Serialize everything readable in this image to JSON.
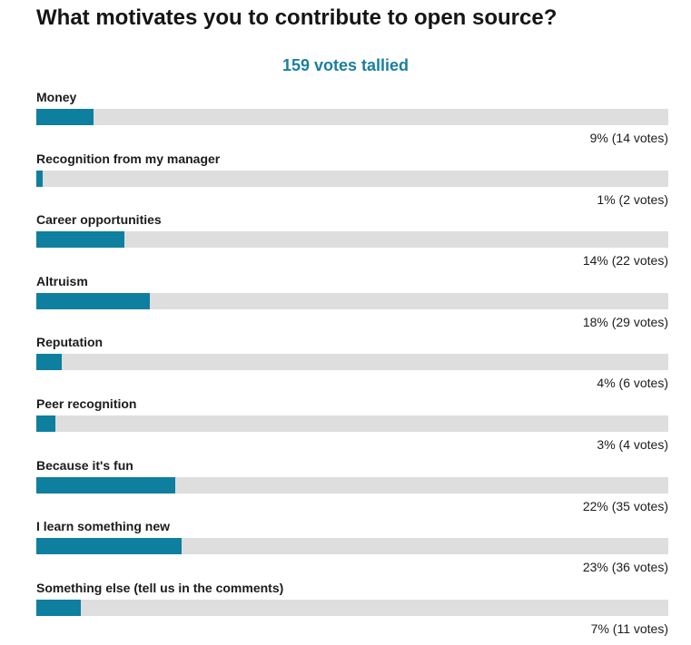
{
  "poll": {
    "title": "What motivates you to contribute to open source?",
    "total": "159 votes tallied",
    "colors": {
      "accent": "#1a7fa0",
      "bar_fill": "#0e7f9e",
      "bar_track": "#dedede"
    },
    "options": [
      {
        "label": "Money",
        "result": "9% (14 votes)",
        "percent": 9
      },
      {
        "label": "Recognition from my manager",
        "result": "1% (2 votes)",
        "percent": 1
      },
      {
        "label": "Career opportunities",
        "result": "14% (22 votes)",
        "percent": 14
      },
      {
        "label": "Altruism",
        "result": "18% (29 votes)",
        "percent": 18
      },
      {
        "label": "Reputation",
        "result": "4% (6 votes)",
        "percent": 4
      },
      {
        "label": "Peer recognition",
        "result": "3% (4 votes)",
        "percent": 3
      },
      {
        "label": "Because it's fun",
        "result": "22% (35 votes)",
        "percent": 22
      },
      {
        "label": "I learn something new",
        "result": "23% (36 votes)",
        "percent": 23
      },
      {
        "label": "Something else (tell us in the comments)",
        "result": "7% (11 votes)",
        "percent": 7
      }
    ]
  }
}
